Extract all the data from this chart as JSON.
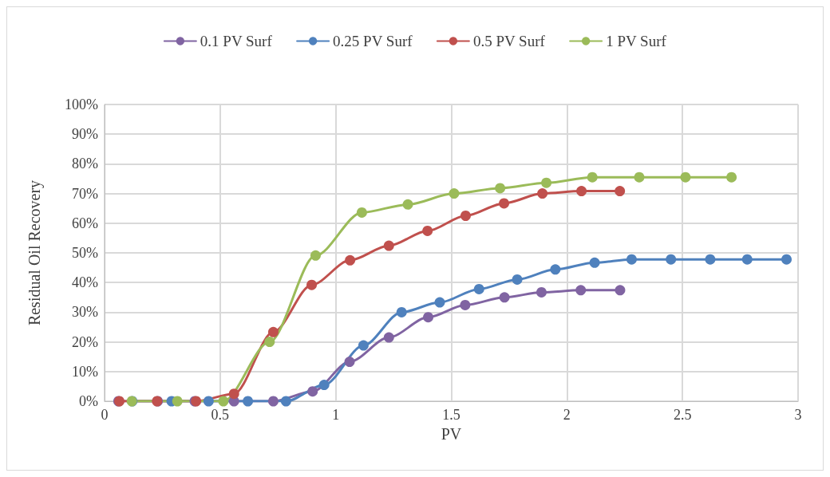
{
  "chart_data": {
    "type": "line",
    "xlabel": "PV",
    "ylabel": "Residual Oil Recovery",
    "xlim": [
      0,
      3
    ],
    "xticks": [
      0,
      0.5,
      1,
      1.5,
      2,
      2.5,
      3
    ],
    "ylim": [
      0,
      100
    ],
    "yticks": [
      {
        "value": 0,
        "label": "0%"
      },
      {
        "value": 10,
        "label": "10%"
      },
      {
        "value": 20,
        "label": "20%"
      },
      {
        "value": 30,
        "label": "30%"
      },
      {
        "value": 40,
        "label": "40%"
      },
      {
        "value": 50,
        "label": "50%"
      },
      {
        "value": 60,
        "label": "60%"
      },
      {
        "value": 70,
        "label": "70%"
      },
      {
        "value": 80,
        "label": "80%"
      },
      {
        "value": 90,
        "label": "90%"
      },
      {
        "value": 100,
        "label": "100%"
      }
    ],
    "grid": true,
    "legend": "top",
    "marker": "circle",
    "line_style": "solid",
    "series": [
      {
        "name": "0.1 PV Surf",
        "color": "#8064a2",
        "x": [
          0.06,
          0.23,
          0.39,
          0.56,
          0.73,
          0.9,
          1.06,
          1.23,
          1.4,
          1.56,
          1.73,
          1.89,
          2.06,
          2.23
        ],
        "values": [
          0,
          0,
          0,
          0,
          0,
          3.3,
          13.3,
          21.5,
          28.3,
          32.4,
          35,
          36.7,
          37.4,
          37.4
        ]
      },
      {
        "name": "0.25 PV Surf",
        "color": "#4f81bd",
        "x": [
          0.12,
          0.29,
          0.45,
          0.62,
          0.785,
          0.95,
          1.12,
          1.285,
          1.45,
          1.62,
          1.785,
          1.95,
          2.12,
          2.28,
          2.45,
          2.62,
          2.78,
          2.95
        ],
        "values": [
          0,
          0,
          0,
          0,
          0,
          5.5,
          18.8,
          30,
          33.3,
          37.8,
          41,
          44.4,
          46.7,
          47.8,
          47.8,
          47.8,
          47.8,
          47.8
        ]
      },
      {
        "name": "0.5 PV Surf",
        "color": "#c0504d",
        "x": [
          0.064,
          0.227,
          0.396,
          0.56,
          0.73,
          0.896,
          1.062,
          1.23,
          1.397,
          1.562,
          1.728,
          1.894,
          2.063,
          2.229
        ],
        "values": [
          0,
          0,
          0,
          2.5,
          23.3,
          39.2,
          47.5,
          52.4,
          57.4,
          62.5,
          66.7,
          70,
          70.8,
          70.8
        ]
      },
      {
        "name": "1 PV Surf",
        "color": "#9bbb59",
        "x": [
          0.118,
          0.315,
          0.514,
          0.714,
          0.913,
          1.113,
          1.312,
          1.512,
          1.711,
          1.911,
          2.11,
          2.313,
          2.513,
          2.712
        ],
        "values": [
          0,
          0,
          0,
          20,
          49.1,
          63.6,
          66.3,
          70,
          71.8,
          73.6,
          75.5,
          75.5,
          75.5,
          75.5
        ]
      }
    ]
  }
}
